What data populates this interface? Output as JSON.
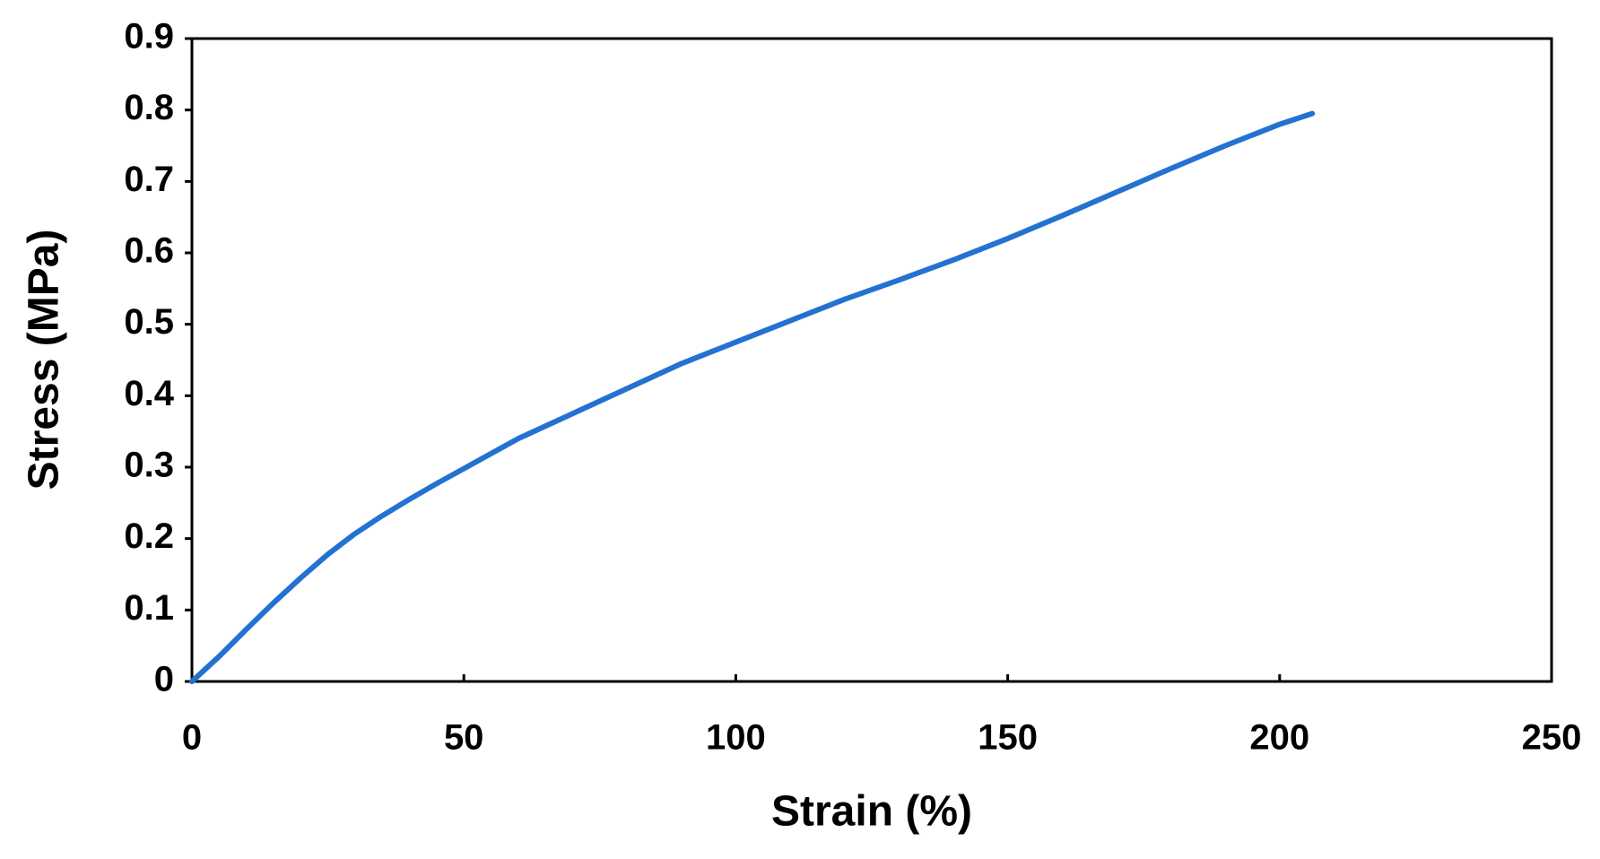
{
  "chart_data": {
    "type": "line",
    "x_label": "Strain (%)",
    "y_label": "Stress (MPa)",
    "series": [
      {
        "color": "#2372d2",
        "x": [
          0,
          5,
          10,
          15,
          20,
          25,
          30,
          35,
          40,
          45,
          50,
          60,
          70,
          80,
          90,
          100,
          110,
          120,
          130,
          140,
          150,
          160,
          170,
          180,
          190,
          200,
          206
        ],
        "values": [
          0,
          0.035,
          0.073,
          0.11,
          0.145,
          0.178,
          0.207,
          0.232,
          0.255,
          0.277,
          0.298,
          0.34,
          0.375,
          0.41,
          0.445,
          0.475,
          0.505,
          0.535,
          0.562,
          0.59,
          0.62,
          0.652,
          0.685,
          0.718,
          0.75,
          0.78,
          0.795
        ]
      }
    ],
    "xlim": [
      0,
      250
    ],
    "xticks": [
      0,
      50,
      100,
      150,
      200,
      250
    ],
    "ylim": [
      0,
      0.9
    ],
    "yticks": [
      0,
      0.1,
      0.2,
      0.3,
      0.4,
      0.5,
      0.6,
      0.7,
      0.8,
      0.9
    ],
    "grid": false
  }
}
